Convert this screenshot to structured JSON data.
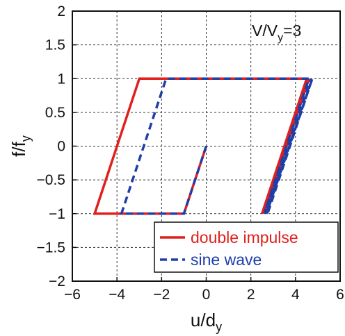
{
  "chart_data": {
    "type": "line",
    "xlabel": "u/d",
    "xlabel_sub": "y",
    "ylabel": "f/f",
    "ylabel_sub": "y",
    "xlim": [
      -6,
      6
    ],
    "ylim": [
      -2,
      2
    ],
    "x_ticks": [
      -6,
      -4,
      -2,
      0,
      2,
      4,
      6
    ],
    "x_tick_labels": [
      "−6",
      "−4",
      "−2",
      "0",
      "2",
      "4",
      "6"
    ],
    "y_ticks": [
      -2,
      -1.5,
      -1,
      -0.5,
      0,
      0.5,
      1,
      1.5,
      2
    ],
    "y_tick_labels": [
      "−2",
      "−1.5",
      "−1",
      "−0.5",
      "0",
      "0.5",
      "1",
      "1.5",
      "2"
    ],
    "grid": true,
    "legend_position": "bottom-right",
    "annotation": {
      "main": "V/V",
      "sub": "y",
      "tail": "=3"
    },
    "series": [
      {
        "name": "double impulse",
        "color": "#e0201c",
        "style": "solid",
        "segments": [
          [
            [
              0,
              0
            ],
            [
              -1,
              -1
            ],
            [
              -5,
              -1
            ],
            [
              -3,
              1
            ],
            [
              4.5,
              1
            ],
            [
              2.5,
              -1
            ],
            [
              4.6,
              1
            ],
            [
              2.6,
              -1
            ]
          ]
        ]
      },
      {
        "name": "sine wave",
        "color": "#1f3fa8",
        "style": "dashed",
        "segments": [
          [
            [
              0,
              0
            ],
            [
              -1,
              -1
            ],
            [
              -3.8,
              -1
            ],
            [
              -1.8,
              1
            ],
            [
              4.6,
              1
            ],
            [
              2.6,
              -1
            ],
            [
              4.7,
              1
            ],
            [
              2.7,
              -1
            ],
            [
              4.75,
              1
            ],
            [
              2.75,
              -1
            ]
          ]
        ]
      }
    ]
  }
}
